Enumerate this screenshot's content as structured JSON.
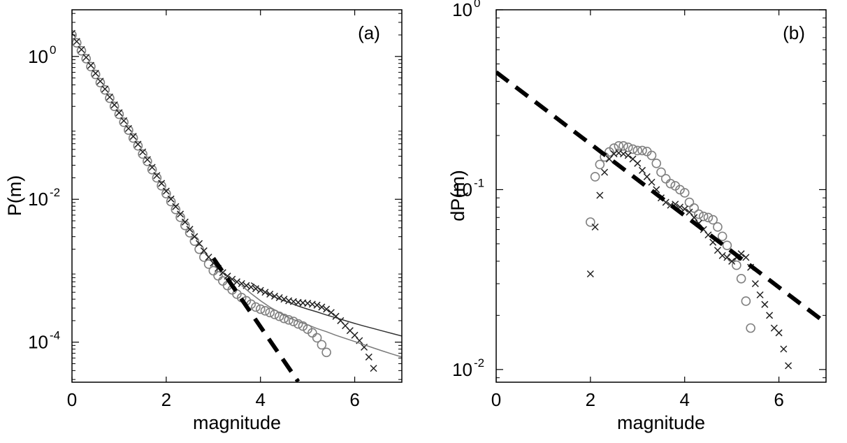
{
  "chart_data": [
    {
      "type": "scatter",
      "panel_tag": "(a)",
      "xlabel": "magnitude",
      "ylabel": "P(m)",
      "xlim": [
        0,
        7
      ],
      "ylim": [
        2.75e-05,
        4.5
      ],
      "yscale": "log",
      "grid": false,
      "x_ticks": [
        {
          "value": 0,
          "label": "0"
        },
        {
          "value": 2,
          "label": "2"
        },
        {
          "value": 4,
          "label": "4"
        },
        {
          "value": 6,
          "label": "6"
        }
      ],
      "y_ticks": [
        {
          "value": 1,
          "base": "10",
          "exp": "0"
        },
        {
          "value": 0.01,
          "base": "10",
          "exp": "-2"
        },
        {
          "value": 0.0001,
          "base": "10",
          "exp": "-4"
        }
      ],
      "series": [
        {
          "marker": "circle",
          "color": "#808080",
          "x": [
            0.0,
            0.1,
            0.2,
            0.3,
            0.4,
            0.5,
            0.6,
            0.7,
            0.8,
            0.9,
            1.0,
            1.1,
            1.2,
            1.3,
            1.4,
            1.5,
            1.6,
            1.7,
            1.8,
            1.9,
            2.0,
            2.1,
            2.2,
            2.3,
            2.4,
            2.5,
            2.6,
            2.7,
            2.8,
            2.9,
            3.0,
            3.1,
            3.2,
            3.3,
            3.4,
            3.5,
            3.6,
            3.7,
            3.8,
            3.9,
            4.0,
            4.1,
            4.2,
            4.3,
            4.4,
            4.5,
            4.6,
            4.7,
            4.8,
            4.9,
            5.0,
            5.1,
            5.2,
            5.3,
            5.4
          ],
          "y": [
            2.0,
            1.55,
            1.2,
            0.93,
            0.72,
            0.56,
            0.43,
            0.34,
            0.26,
            0.2,
            0.155,
            0.12,
            0.093,
            0.072,
            0.056,
            0.043,
            0.034,
            0.026,
            0.02,
            0.0155,
            0.012,
            0.0093,
            0.0072,
            0.0056,
            0.0043,
            0.0034,
            0.0026,
            0.002,
            0.00155,
            0.00124,
            0.001,
            0.00085,
            0.00072,
            0.00062,
            0.00054,
            0.00047,
            0.00042,
            0.00038,
            0.00034,
            0.00031,
            0.00029,
            0.000275,
            0.00026,
            0.000245,
            0.00023,
            0.000215,
            0.000205,
            0.000195,
            0.00018,
            0.000168,
            0.000152,
            0.000135,
            0.000115,
            9.2e-05,
            7.2e-05
          ]
        },
        {
          "marker": "cross",
          "color": "#222222",
          "x": [
            0.0,
            0.1,
            0.2,
            0.3,
            0.4,
            0.5,
            0.6,
            0.7,
            0.8,
            0.9,
            1.0,
            1.1,
            1.2,
            1.3,
            1.4,
            1.5,
            1.6,
            1.7,
            1.8,
            1.9,
            2.0,
            2.1,
            2.2,
            2.3,
            2.4,
            2.5,
            2.6,
            2.7,
            2.8,
            2.9,
            3.0,
            3.1,
            3.2,
            3.3,
            3.4,
            3.5,
            3.6,
            3.7,
            3.8,
            3.9,
            4.0,
            4.1,
            4.2,
            4.3,
            4.4,
            4.5,
            4.6,
            4.7,
            4.8,
            4.9,
            5.0,
            5.1,
            5.2,
            5.3,
            5.4,
            5.5,
            5.6,
            5.7,
            5.8,
            5.9,
            6.0,
            6.1,
            6.2,
            6.3,
            6.4
          ],
          "y": [
            2.1,
            1.62,
            1.25,
            0.97,
            0.75,
            0.58,
            0.45,
            0.35,
            0.27,
            0.21,
            0.163,
            0.126,
            0.098,
            0.076,
            0.059,
            0.046,
            0.036,
            0.028,
            0.0215,
            0.0167,
            0.013,
            0.0101,
            0.0079,
            0.0062,
            0.0048,
            0.0038,
            0.003,
            0.0024,
            0.0019,
            0.00155,
            0.00128,
            0.00108,
            0.00094,
            0.00084,
            0.00076,
            0.0007,
            0.00066,
            0.00062,
            0.00059,
            0.00056,
            0.00053,
            0.0005,
            0.00047,
            0.00044,
            0.00042,
            0.0004,
            0.00038,
            0.00037,
            0.00036,
            0.000355,
            0.00035,
            0.00034,
            0.00033,
            0.00031,
            0.00029,
            0.00026,
            0.00023,
            0.0002,
            0.00017,
            0.000145,
            0.000125,
            0.000105,
            8.5e-05,
            6.2e-05,
            4.3e-05
          ]
        },
        {
          "marker": "line",
          "color": "#333333",
          "line_width": 1.5,
          "x": [
            3.8,
            4.0,
            4.2,
            4.4,
            4.6,
            4.8,
            5.0,
            5.2,
            5.4,
            5.6,
            5.8,
            6.0,
            6.2,
            6.4,
            6.6,
            6.8,
            7.0
          ],
          "y": [
            0.00068,
            0.00055,
            0.00046,
            0.0004,
            0.00036,
            0.00032,
            0.00029,
            0.000265,
            0.00024,
            0.00022,
            0.0002,
            0.000183,
            0.000168,
            0.000155,
            0.000143,
            0.000132,
            0.000122
          ]
        },
        {
          "marker": "line",
          "color": "#7a7a7a",
          "line_width": 1.5,
          "x": [
            3.6,
            3.8,
            4.0,
            4.2,
            4.4,
            4.6,
            4.8,
            5.0,
            5.2,
            5.4,
            5.6,
            5.8,
            6.0,
            6.2,
            6.4,
            6.6,
            6.8,
            7.0
          ],
          "y": [
            0.00062,
            0.00048,
            0.00038,
            0.00031,
            0.00026,
            0.00022,
            0.000195,
            0.000175,
            0.000155,
            0.00014,
            0.000125,
            0.000113,
            0.000102,
            9.2e-05,
            8.3e-05,
            7.5e-05,
            6.8e-05,
            6.2e-05
          ]
        },
        {
          "marker": "dash",
          "color": "#000000",
          "line_width": 6,
          "x": [
            3.0,
            4.8
          ],
          "y": [
            0.0015,
            2.8e-05
          ]
        }
      ]
    },
    {
      "type": "scatter",
      "panel_tag": "(b)",
      "xlabel": "magnitude",
      "ylabel": "dP(m)",
      "xlim": [
        0,
        7
      ],
      "ylim": [
        0.0085,
        1.0
      ],
      "yscale": "log",
      "grid": false,
      "x_ticks": [
        {
          "value": 0,
          "label": "0"
        },
        {
          "value": 2,
          "label": "2"
        },
        {
          "value": 4,
          "label": "4"
        },
        {
          "value": 6,
          "label": "6"
        }
      ],
      "y_ticks": [
        {
          "value": 1,
          "base": "10",
          "exp": "0"
        },
        {
          "value": 0.1,
          "base": "10",
          "exp": "-1"
        },
        {
          "value": 0.01,
          "base": "10",
          "exp": "-2"
        }
      ],
      "series": [
        {
          "marker": "circle",
          "color": "#808080",
          "x": [
            2.0,
            2.1,
            2.2,
            2.3,
            2.4,
            2.5,
            2.6,
            2.7,
            2.8,
            2.9,
            3.0,
            3.1,
            3.2,
            3.3,
            3.4,
            3.5,
            3.6,
            3.7,
            3.8,
            3.9,
            4.0,
            4.1,
            4.2,
            4.3,
            4.4,
            4.5,
            4.6,
            4.7,
            4.8,
            4.9,
            5.0,
            5.1,
            5.2,
            5.3,
            5.4
          ],
          "y": [
            0.066,
            0.118,
            0.138,
            0.152,
            0.162,
            0.17,
            0.175,
            0.175,
            0.172,
            0.168,
            0.165,
            0.165,
            0.163,
            0.155,
            0.14,
            0.125,
            0.115,
            0.108,
            0.105,
            0.1,
            0.096,
            0.085,
            0.079,
            0.073,
            0.071,
            0.07,
            0.068,
            0.062,
            0.055,
            0.049,
            0.042,
            0.038,
            0.032,
            0.024,
            0.017
          ]
        },
        {
          "marker": "cross",
          "color": "#222222",
          "x": [
            2.0,
            2.1,
            2.2,
            2.3,
            2.4,
            2.5,
            2.6,
            2.7,
            2.8,
            2.9,
            3.0,
            3.1,
            3.2,
            3.3,
            3.4,
            3.5,
            3.6,
            3.7,
            3.8,
            3.9,
            4.0,
            4.1,
            4.2,
            4.3,
            4.4,
            4.5,
            4.6,
            4.7,
            4.8,
            4.9,
            5.0,
            5.1,
            5.2,
            5.3,
            5.4,
            5.5,
            5.6,
            5.7,
            5.8,
            5.9,
            6.0,
            6.1,
            6.2
          ],
          "y": [
            0.034,
            0.062,
            0.093,
            0.125,
            0.148,
            0.158,
            0.16,
            0.158,
            0.155,
            0.148,
            0.14,
            0.128,
            0.118,
            0.11,
            0.1,
            0.09,
            0.085,
            0.082,
            0.083,
            0.08,
            0.078,
            0.075,
            0.07,
            0.065,
            0.06,
            0.056,
            0.051,
            0.046,
            0.043,
            0.042,
            0.04,
            0.042,
            0.044,
            0.042,
            0.037,
            0.03,
            0.026,
            0.023,
            0.02,
            0.017,
            0.016,
            0.013,
            0.0105
          ]
        },
        {
          "marker": "dash",
          "color": "#000000",
          "line_width": 6,
          "x": [
            0.0,
            7.0
          ],
          "y": [
            0.45,
            0.0181
          ]
        }
      ]
    }
  ]
}
